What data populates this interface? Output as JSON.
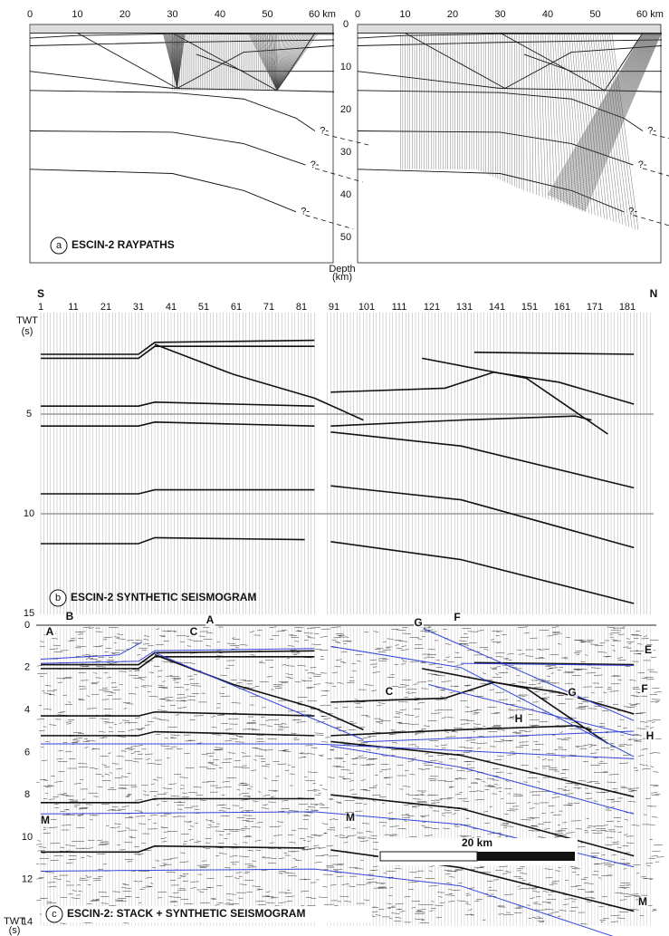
{
  "panel_a": {
    "letter": "a",
    "title": "ESCIN-2  RAYPATHS",
    "x_ticks": [
      "0",
      "10",
      "20",
      "30",
      "40",
      "50",
      "60 km"
    ],
    "depth_ticks": [
      0,
      10,
      20,
      30,
      40,
      50
    ],
    "depth_label": [
      "Depth",
      "(km)"
    ],
    "question_mark": "?-"
  },
  "panel_b": {
    "letter": "b",
    "title": "ESCIN-2  SYNTHETIC SEISMOGRAM",
    "south": "S",
    "north": "N",
    "trace_ticks": [
      1,
      11,
      21,
      31,
      41,
      51,
      61,
      71,
      81,
      91,
      101,
      111,
      121,
      131,
      141,
      151,
      161,
      171,
      181
    ],
    "y_label": [
      "TWT",
      "(s)"
    ],
    "y_ticks": [
      5,
      10,
      15
    ]
  },
  "panel_c": {
    "letter": "c",
    "title": "ESCIN-2:  STACK + SYNTHETIC SEISMOGRAM",
    "y_ticks": [
      0,
      2,
      4,
      6,
      8,
      10,
      12,
      14
    ],
    "y_label": [
      "TWT",
      "(s)"
    ],
    "scale_label": "20 km",
    "annotations": [
      "A",
      "B",
      "A",
      "C",
      "G",
      "F",
      "E",
      "F",
      "G",
      "C",
      "H",
      "H",
      "M",
      "M",
      "M"
    ]
  }
}
